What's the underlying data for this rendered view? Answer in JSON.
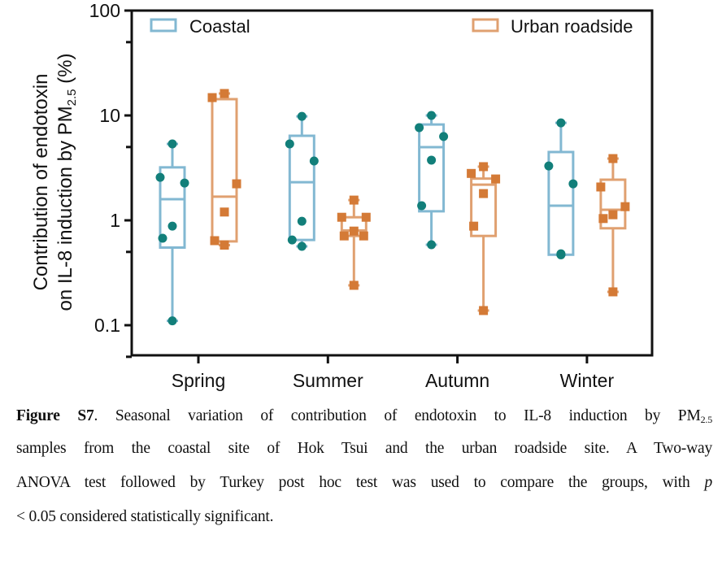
{
  "chart_data": {
    "type": "box",
    "title": "",
    "ylabel_line1": "Contribution of endotoxin",
    "ylabel_line2_prefix": "on IL-8 induction by PM",
    "ylabel_line2_sub": "2.5",
    "ylabel_line2_suffix": " (%)",
    "xlabel": "",
    "yscale": "log",
    "ylim": [
      0.05,
      100
    ],
    "yticks": [
      {
        "value": 100,
        "label": "100"
      },
      {
        "value": 10,
        "label": "10"
      },
      {
        "value": 1,
        "label": "1"
      },
      {
        "value": 0.1,
        "label": "0.1"
      }
    ],
    "yminor_ticks": [
      50,
      5,
      0.5,
      0.05
    ],
    "categories": [
      "Spring",
      "Summer",
      "Autumn",
      "Winter"
    ],
    "legend_placement": "top",
    "series": [
      {
        "name": "Coastal",
        "box_color": "#82B8D2",
        "point_color": "#127F7A",
        "marker": "circle",
        "groups": [
          {
            "category": "Spring",
            "min": 0.11,
            "q1": 0.55,
            "median": 1.59,
            "q3": 3.2,
            "max": 5.35,
            "points": [
              5.35,
              2.57,
              2.27,
              0.88,
              0.675,
              0.11
            ]
          },
          {
            "category": "Summer",
            "min": 0.565,
            "q1": 0.65,
            "median": 2.31,
            "q3": 6.4,
            "max": 9.8,
            "points": [
              9.8,
              5.35,
              3.68,
              0.98,
              0.65,
              0.565
            ]
          },
          {
            "category": "Autumn",
            "min": 0.585,
            "q1": 1.22,
            "median": 4.99,
            "q3": 8.2,
            "max": 10.0,
            "points": [
              10.0,
              7.65,
              6.3,
              3.75,
              1.38,
              0.585
            ]
          },
          {
            "category": "Winter",
            "min": 0.47,
            "q1": 0.47,
            "median": 1.38,
            "q3": 4.48,
            "max": 8.5,
            "points": [
              8.5,
              3.3,
              2.23,
              0.48,
              0.47,
              0.47
            ]
          }
        ]
      },
      {
        "name": "Urban roadside",
        "box_color": "#E0A070",
        "point_color": "#D47A36",
        "marker": "square",
        "groups": [
          {
            "category": "Spring",
            "min": 0.58,
            "q1": 0.63,
            "median": 1.68,
            "q3": 14.3,
            "max": 16.2,
            "points": [
              16.2,
              14.8,
              2.23,
              1.2,
              0.64,
              0.58
            ]
          },
          {
            "category": "Summer",
            "min": 0.24,
            "q1": 0.71,
            "median": 0.8,
            "q3": 1.07,
            "max": 1.56,
            "points": [
              1.56,
              1.07,
              1.07,
              0.79,
              0.71,
              0.71,
              0.24
            ]
          },
          {
            "category": "Autumn",
            "min": 0.138,
            "q1": 0.71,
            "median": 2.19,
            "q3": 2.5,
            "max": 3.25,
            "points": [
              3.25,
              2.8,
              2.48,
              1.8,
              0.88,
              0.138
            ]
          },
          {
            "category": "Winter",
            "min": 0.208,
            "q1": 0.84,
            "median": 1.26,
            "q3": 2.44,
            "max": 3.88,
            "points": [
              3.88,
              2.08,
              1.35,
              1.13,
              1.04,
              0.208
            ]
          }
        ]
      }
    ]
  },
  "caption": {
    "label": "Figure S7",
    "line1_text": ". Seasonal variation of contribution of endotoxin to IL-8 induction by PM",
    "line1_sub": "2.5",
    "line2": "samples from the coastal site of Hok Tsui and the urban roadside site. A Two-way",
    "line3_text": "ANOVA test followed by Turkey post hoc test was used to compare the groups, with ",
    "line3_italic": "p",
    "line4": "< 0.05 considered statistically significant."
  }
}
